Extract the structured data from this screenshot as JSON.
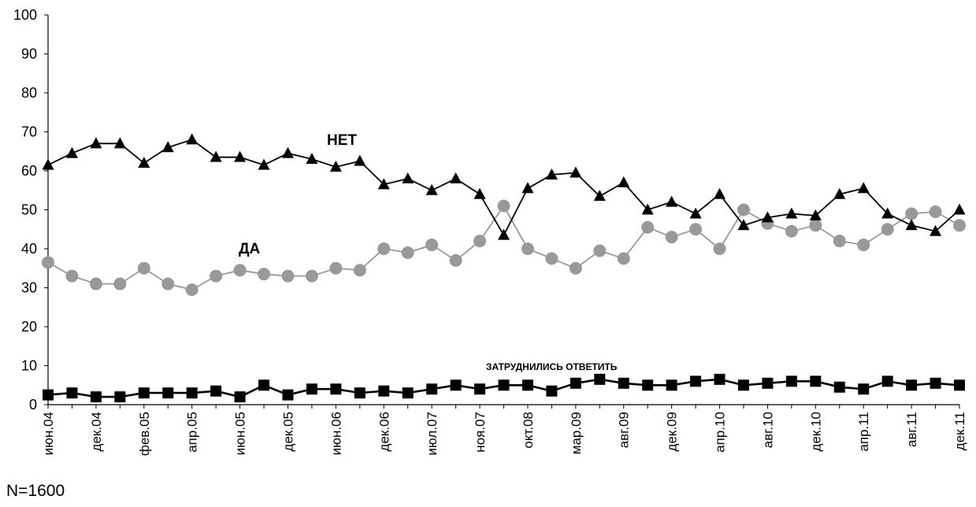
{
  "chart_data": {
    "type": "line",
    "title": "",
    "xlabel": "",
    "ylabel": "",
    "ylim": [
      0,
      100
    ],
    "yticks": [
      0,
      10,
      20,
      30,
      40,
      50,
      60,
      70,
      80,
      90,
      100
    ],
    "legend": "inline labels",
    "grid": false,
    "x_tick_labels": [
      "июн.04",
      "дек.04",
      "фев.05",
      "апр.05",
      "июн.05",
      "дек.05",
      "июн.06",
      "дек.06",
      "июл.07",
      "ноя.07",
      "окт.08",
      "мар.09",
      "авг.09",
      "дек.09",
      "апр.10",
      "авг.10",
      "дек.10",
      "апр.11",
      "авг.11",
      "дек.11"
    ],
    "series": [
      {
        "name": "НЕТ",
        "color": "#000000",
        "marker": "triangle",
        "values": [
          61.5,
          64.5,
          67,
          67,
          62,
          66,
          68,
          63.5,
          63.5,
          61.5,
          64.5,
          63,
          61,
          62.5,
          56.5,
          58,
          55,
          58,
          54,
          43.5,
          55.5,
          59,
          59.5,
          53.5,
          57,
          50,
          52,
          49,
          54,
          46,
          48,
          49,
          48.5,
          54,
          55.5,
          49,
          46,
          44.5,
          50
        ]
      },
      {
        "name": "ДА",
        "color": "#999999",
        "marker": "circle",
        "values": [
          36.5,
          33,
          31,
          31,
          35,
          31,
          29.5,
          33,
          34.5,
          33.5,
          33,
          33,
          35,
          34.5,
          40,
          39,
          41,
          37,
          42,
          51,
          40,
          37.5,
          35,
          39.5,
          37.5,
          45.5,
          43,
          45,
          40,
          50,
          46.5,
          44.5,
          46,
          42,
          41,
          45,
          49,
          49.5,
          46
        ]
      },
      {
        "name": "ЗАТРУДНИЛИСЬ ОТВЕТИТЬ",
        "color": "#000000",
        "marker": "square",
        "values": [
          2.5,
          3,
          2,
          2,
          3,
          3,
          3,
          3.5,
          2,
          5,
          2.5,
          4,
          4,
          3,
          3.5,
          3,
          4,
          5,
          4,
          5,
          5,
          3.5,
          5.5,
          6.5,
          5.5,
          5,
          5,
          6,
          6.5,
          5,
          5.5,
          6,
          6,
          4.5,
          4,
          6,
          5,
          5.5,
          5
        ]
      }
    ],
    "annotations": [
      "НЕТ",
      "ДА",
      "ЗАТРУДНИЛИСЬ ОТВЕТИТЬ"
    ]
  },
  "note": "N=1600"
}
